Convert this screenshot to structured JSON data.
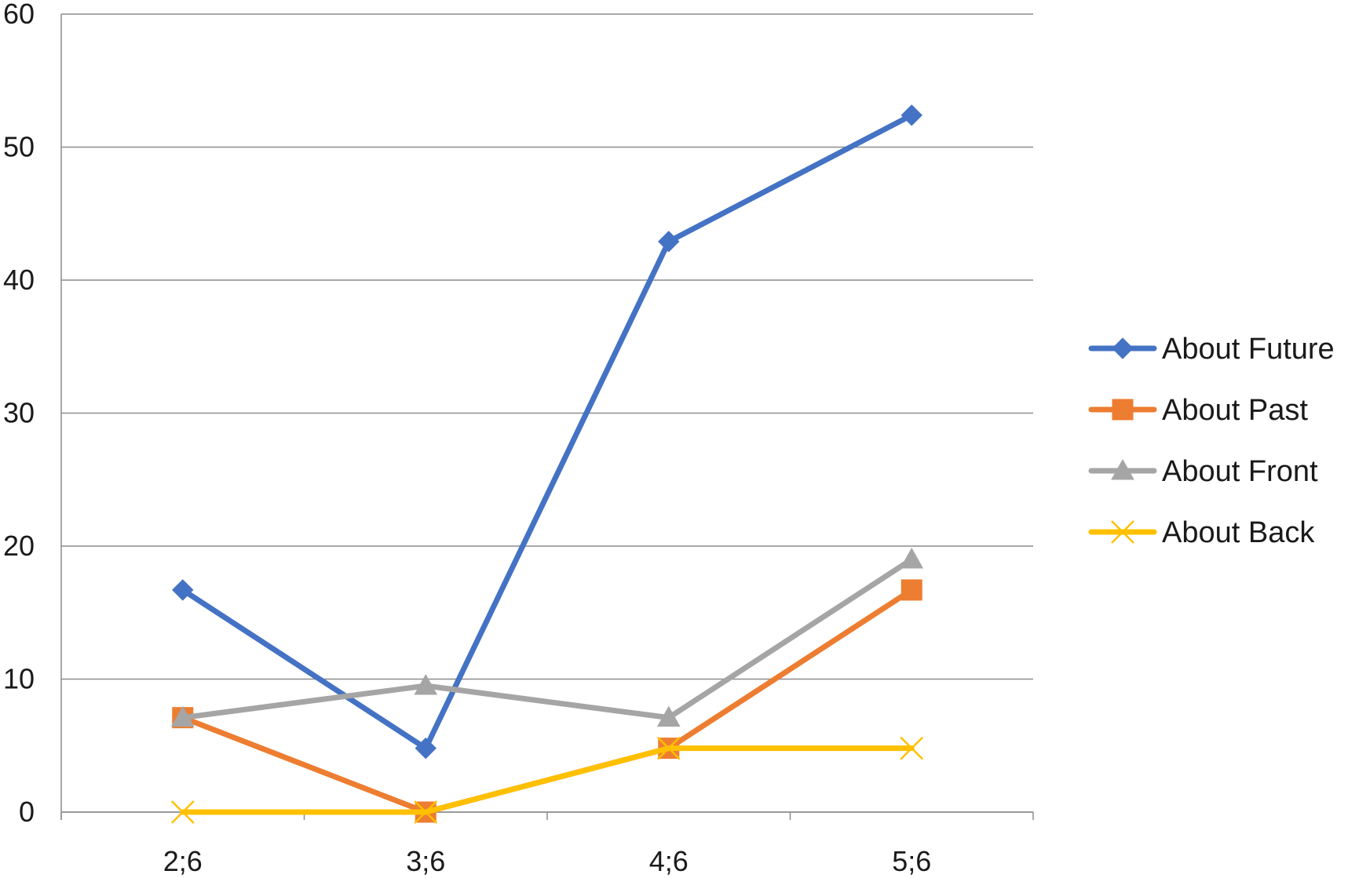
{
  "chart_data": {
    "type": "line",
    "categories": [
      "2;6",
      "3;6",
      "4;6",
      "5;6"
    ],
    "series": [
      {
        "name": "About Future",
        "values": [
          16.7,
          4.8,
          42.9,
          52.4
        ],
        "color": "#4472C4",
        "marker": "diamond"
      },
      {
        "name": "About Past",
        "values": [
          7.1,
          0,
          4.8,
          16.7
        ],
        "color": "#ED7D31",
        "marker": "square"
      },
      {
        "name": "About Front",
        "values": [
          7.1,
          9.5,
          7.1,
          19.0
        ],
        "color": "#A5A5A5",
        "marker": "triangle"
      },
      {
        "name": "About Back",
        "values": [
          0,
          0,
          4.8,
          4.8
        ],
        "color": "#FFC000",
        "marker": "x"
      }
    ],
    "yticks": [
      "0",
      "10",
      "20",
      "30",
      "40",
      "50",
      "60"
    ],
    "ylim": [
      0,
      60
    ],
    "grid": true,
    "legend_position": "right",
    "title": "",
    "xlabel": "",
    "ylabel": ""
  }
}
